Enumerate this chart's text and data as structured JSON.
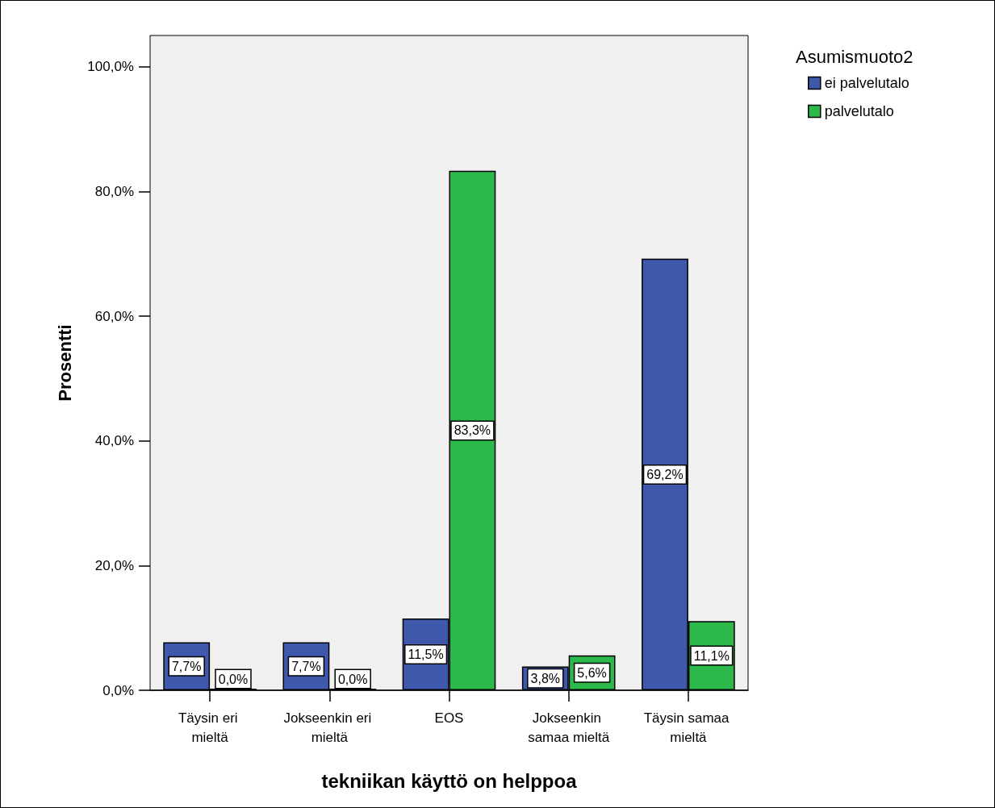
{
  "chart_data": {
    "type": "bar",
    "xlabel": "tekniikan käyttö on helppoa",
    "ylabel": "Prosentti",
    "legend_title": "Asumismuoto2",
    "categories": [
      "Täysin eri mieltä",
      "Jokseenkin eri mieltä",
      "EOS",
      "Jokseenkin samaa mieltä",
      "Täysin samaa mieltä"
    ],
    "series": [
      {
        "name": "ei palvelutalo",
        "color": "#3e58ac",
        "values": [
          7.7,
          7.7,
          11.5,
          3.8,
          69.2
        ],
        "value_labels": [
          "7,7%",
          "7,7%",
          "11,5%",
          "3,8%",
          "69,2%"
        ]
      },
      {
        "name": "palvelutalo",
        "color": "#2db84b",
        "values": [
          0.0,
          0.0,
          83.3,
          5.6,
          11.1
        ],
        "value_labels": [
          "0,0%",
          "0,0%",
          "83,3%",
          "5,6%",
          "11,1%"
        ]
      }
    ],
    "ylim": [
      0,
      105
    ],
    "yticks": [
      {
        "value": 0,
        "label": "0,0%"
      },
      {
        "value": 20,
        "label": "20,0%"
      },
      {
        "value": 40,
        "label": "40,0%"
      },
      {
        "value": 60,
        "label": "60,0%"
      },
      {
        "value": 80,
        "label": "80,0%"
      },
      {
        "value": 100,
        "label": "100,0%"
      }
    ],
    "grid": false,
    "legend": "top right"
  }
}
